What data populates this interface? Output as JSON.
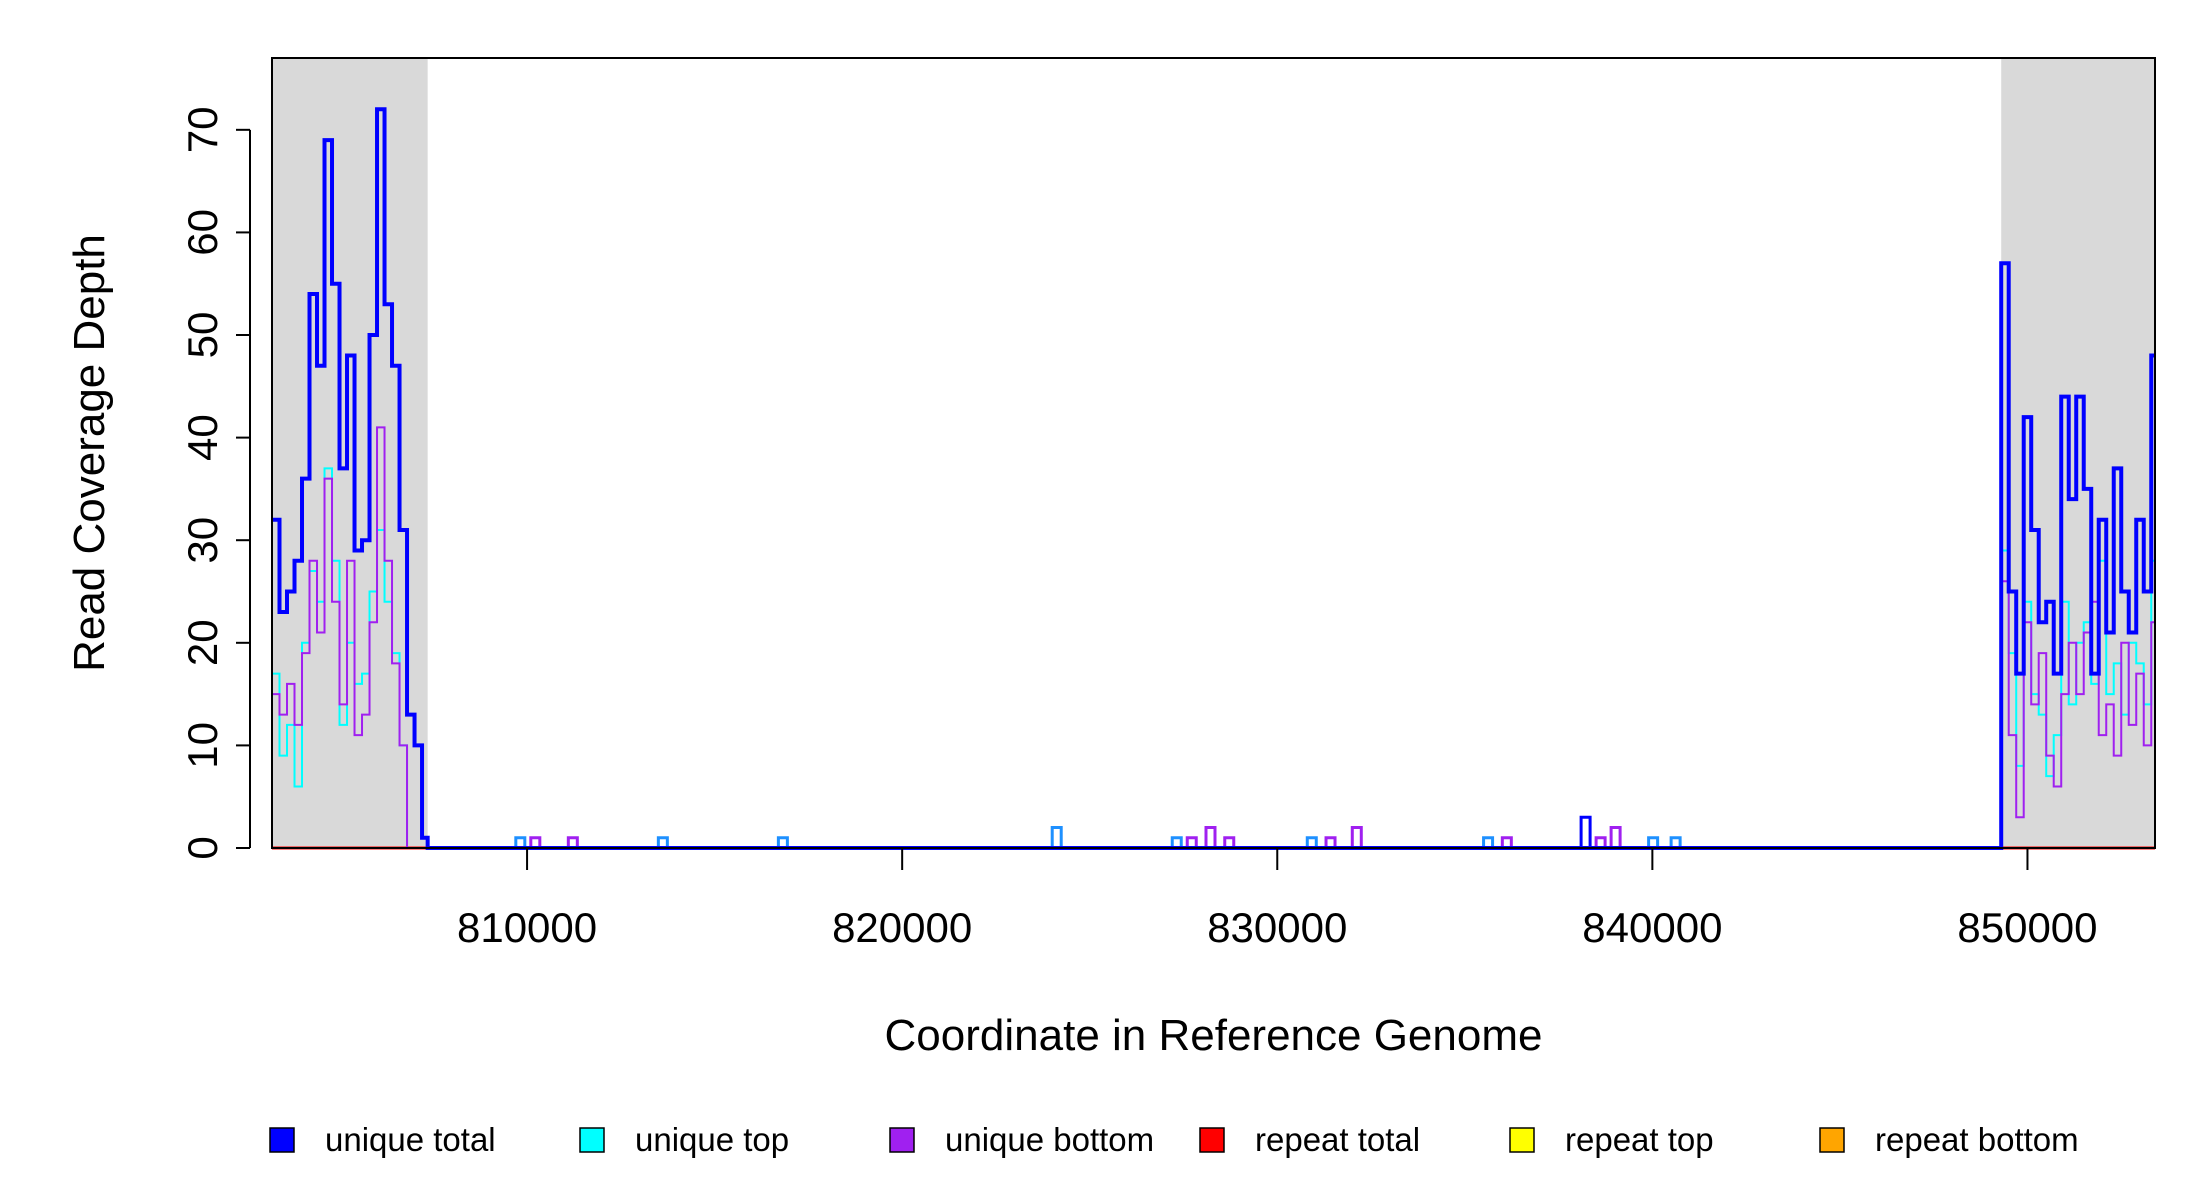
{
  "chart_data": {
    "type": "line",
    "title": "",
    "xlabel": "Coordinate in Reference Genome",
    "ylabel": "Read Coverage Depth",
    "xlim": [
      803200,
      853400
    ],
    "ylim": [
      0,
      77
    ],
    "x_ticks": [
      810000,
      820000,
      830000,
      840000,
      850000
    ],
    "x_tick_labels": [
      "810000",
      "820000",
      "830000",
      "840000",
      "850000"
    ],
    "y_ticks": [
      0,
      10,
      20,
      30,
      40,
      50,
      60,
      70
    ],
    "y_tick_labels": [
      "0",
      "10",
      "20",
      "30",
      "40",
      "50",
      "60",
      "70"
    ],
    "grid": false,
    "legend_position": "bottom",
    "shaded_regions": [
      {
        "x": [
          803200,
          807350
        ],
        "color": "#d9d9d9"
      },
      {
        "x": [
          849300,
          853400
        ],
        "color": "#d9d9d9"
      }
    ],
    "series": [
      {
        "name": "unique total",
        "color": "#0000ff",
        "x": [
          803200,
          803400,
          803600,
          803800,
          804000,
          804200,
          804400,
          804600,
          804800,
          805000,
          805200,
          805400,
          805600,
          805800,
          806000,
          806200,
          806400,
          806600,
          806800,
          807000,
          807200,
          807350,
          849300,
          849500,
          849700,
          849900,
          850100,
          850300,
          850500,
          850700,
          850900,
          851100,
          851300,
          851500,
          851700,
          851900,
          852100,
          852300,
          852500,
          852700,
          852900,
          853100,
          853300,
          853400
        ],
        "values": [
          32,
          23,
          25,
          28,
          36,
          54,
          47,
          69,
          55,
          37,
          48,
          29,
          30,
          50,
          72,
          53,
          47,
          31,
          13,
          10,
          1,
          0,
          57,
          25,
          17,
          42,
          31,
          22,
          24,
          17,
          44,
          34,
          44,
          35,
          17,
          32,
          21,
          37,
          25,
          21,
          32,
          25,
          48,
          48
        ]
      },
      {
        "name": "unique top",
        "color": "#00ffff",
        "x": [
          803200,
          803400,
          803600,
          803800,
          804000,
          804200,
          804400,
          804600,
          804800,
          805000,
          805200,
          805400,
          805600,
          805800,
          806000,
          806200,
          806400,
          806600,
          806800,
          807000,
          807200,
          807350,
          849300,
          849500,
          849700,
          849900,
          850100,
          850300,
          850500,
          850700,
          850900,
          851100,
          851300,
          851500,
          851700,
          851900,
          852100,
          852300,
          852500,
          852700,
          852900,
          853100,
          853300,
          853400
        ],
        "values": [
          17,
          9,
          12,
          6,
          20,
          27,
          24,
          37,
          28,
          12,
          20,
          16,
          17,
          25,
          31,
          24,
          19,
          10,
          0,
          0,
          0,
          0,
          29,
          19,
          8,
          24,
          15,
          13,
          7,
          11,
          24,
          14,
          20,
          22,
          16,
          28,
          15,
          18,
          13,
          20,
          18,
          14,
          28,
          28
        ]
      },
      {
        "name": "unique bottom",
        "color": "#a020f0",
        "x": [
          803200,
          803400,
          803600,
          803800,
          804000,
          804200,
          804400,
          804600,
          804800,
          805000,
          805200,
          805400,
          805600,
          805800,
          806000,
          806200,
          806400,
          806600,
          806800,
          807000,
          807200,
          807350,
          849300,
          849500,
          849700,
          849900,
          850100,
          850300,
          850500,
          850700,
          850900,
          851100,
          851300,
          851500,
          851700,
          851900,
          852100,
          852300,
          852500,
          852700,
          852900,
          853100,
          853300,
          853400
        ],
        "values": [
          15,
          13,
          16,
          12,
          19,
          28,
          21,
          36,
          24,
          14,
          28,
          11,
          13,
          22,
          41,
          28,
          18,
          10,
          0,
          0,
          0,
          0,
          26,
          11,
          3,
          22,
          14,
          19,
          9,
          6,
          15,
          20,
          15,
          21,
          24,
          11,
          14,
          9,
          20,
          12,
          17,
          10,
          22,
          22
        ]
      },
      {
        "name": "repeat total",
        "color": "#ff0000",
        "x": [
          803200,
          853400
        ],
        "values": [
          0,
          0
        ]
      },
      {
        "name": "repeat top",
        "color": "#ffff00",
        "x": [
          803200,
          853400
        ],
        "values": [
          0,
          0
        ]
      },
      {
        "name": "repeat bottom",
        "color": "#ffa500",
        "x": [
          803200,
          853400
        ],
        "values": [
          0,
          0
        ]
      }
    ],
    "small_blips": [
      {
        "x": 809700,
        "total": 1,
        "color": "#1e90ff"
      },
      {
        "x": 810100,
        "total": 1,
        "color": "#a020f0"
      },
      {
        "x": 811100,
        "total": 1,
        "color": "#a020f0"
      },
      {
        "x": 813500,
        "total": 1,
        "color": "#1e90ff"
      },
      {
        "x": 816700,
        "total": 1,
        "color": "#1e90ff"
      },
      {
        "x": 824000,
        "total": 2,
        "color": "#1e90ff"
      },
      {
        "x": 827200,
        "total": 1,
        "color": "#1e90ff"
      },
      {
        "x": 827600,
        "total": 1,
        "color": "#a020f0"
      },
      {
        "x": 828100,
        "total": 2,
        "color": "#a020f0"
      },
      {
        "x": 828600,
        "total": 1,
        "color": "#a020f0"
      },
      {
        "x": 830800,
        "total": 1,
        "color": "#1e90ff"
      },
      {
        "x": 831300,
        "total": 1,
        "color": "#a020f0"
      },
      {
        "x": 832000,
        "total": 2,
        "color": "#a020f0"
      },
      {
        "x": 835500,
        "total": 1,
        "color": "#1e90ff"
      },
      {
        "x": 836000,
        "total": 1,
        "color": "#a020f0"
      },
      {
        "x": 838100,
        "total": 3,
        "color": "#0000ff"
      },
      {
        "x": 838500,
        "total": 1,
        "color": "#a020f0"
      },
      {
        "x": 838900,
        "total": 2,
        "color": "#a020f0"
      },
      {
        "x": 839900,
        "total": 1,
        "color": "#1e90ff"
      },
      {
        "x": 840500,
        "total": 1,
        "color": "#1e90ff"
      }
    ]
  }
}
